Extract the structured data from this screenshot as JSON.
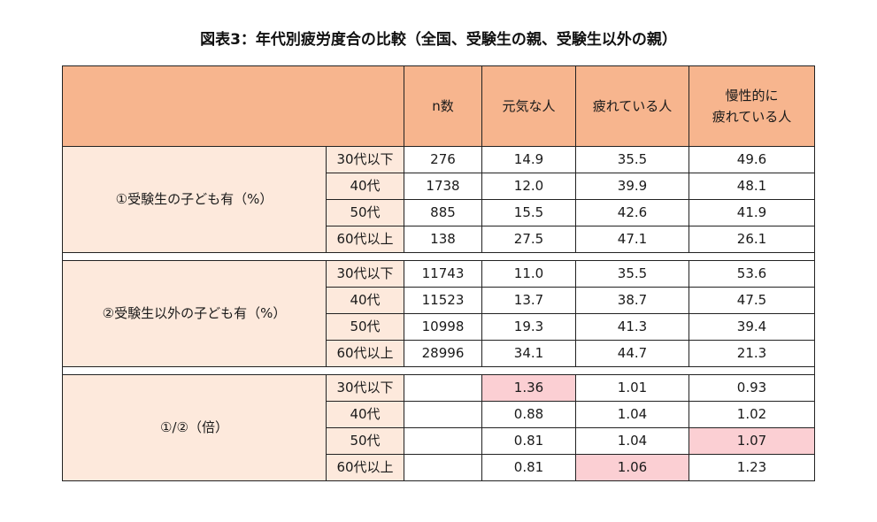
{
  "chart_data": {
    "type": "table",
    "title": "図表3：年代別疲労度合の比較（全国、受験生の親、受験生以外の親）",
    "columns": [
      "n数",
      "元気な人",
      "疲れている人",
      "慢性的に疲れている人"
    ],
    "columns_display": [
      [
        "n数"
      ],
      [
        "元気な人"
      ],
      [
        "疲れている人"
      ],
      [
        "慢性的に",
        "疲れている人"
      ]
    ],
    "groups": [
      {
        "label": "①受験生の子ども有（%）",
        "rows": [
          {
            "age": "30代以下",
            "cells": [
              "276",
              "14.9",
              "35.5",
              "49.6"
            ],
            "highlight": [
              false,
              false,
              false,
              false
            ]
          },
          {
            "age": "40代",
            "cells": [
              "1738",
              "12.0",
              "39.9",
              "48.1"
            ],
            "highlight": [
              false,
              false,
              false,
              false
            ]
          },
          {
            "age": "50代",
            "cells": [
              "885",
              "15.5",
              "42.6",
              "41.9"
            ],
            "highlight": [
              false,
              false,
              false,
              false
            ]
          },
          {
            "age": "60代以上",
            "cells": [
              "138",
              "27.5",
              "47.1",
              "26.1"
            ],
            "highlight": [
              false,
              false,
              false,
              false
            ]
          }
        ]
      },
      {
        "label": "②受験生以外の子ども有（%）",
        "rows": [
          {
            "age": "30代以下",
            "cells": [
              "11743",
              "11.0",
              "35.5",
              "53.6"
            ],
            "highlight": [
              false,
              false,
              false,
              false
            ]
          },
          {
            "age": "40代",
            "cells": [
              "11523",
              "13.7",
              "38.7",
              "47.5"
            ],
            "highlight": [
              false,
              false,
              false,
              false
            ]
          },
          {
            "age": "50代",
            "cells": [
              "10998",
              "19.3",
              "41.3",
              "39.4"
            ],
            "highlight": [
              false,
              false,
              false,
              false
            ]
          },
          {
            "age": "60代以上",
            "cells": [
              "28996",
              "34.1",
              "44.7",
              "21.3"
            ],
            "highlight": [
              false,
              false,
              false,
              false
            ]
          }
        ]
      },
      {
        "label": "①/②（倍）",
        "rows": [
          {
            "age": "30代以下",
            "cells": [
              "",
              "1.36",
              "1.01",
              "0.93"
            ],
            "highlight": [
              false,
              true,
              false,
              false
            ]
          },
          {
            "age": "40代",
            "cells": [
              "",
              "0.88",
              "1.04",
              "1.02"
            ],
            "highlight": [
              false,
              false,
              false,
              false
            ]
          },
          {
            "age": "50代",
            "cells": [
              "",
              "0.81",
              "1.04",
              "1.07"
            ],
            "highlight": [
              false,
              false,
              false,
              true
            ]
          },
          {
            "age": "60代以上",
            "cells": [
              "",
              "0.81",
              "1.06",
              "1.23"
            ],
            "highlight": [
              false,
              false,
              true,
              false
            ]
          }
        ]
      }
    ],
    "colors": {
      "header_bg": "#f7b58e",
      "label_bg": "#fde9dc",
      "highlight_bg": "#fbcfd3",
      "border": "#222222"
    }
  }
}
